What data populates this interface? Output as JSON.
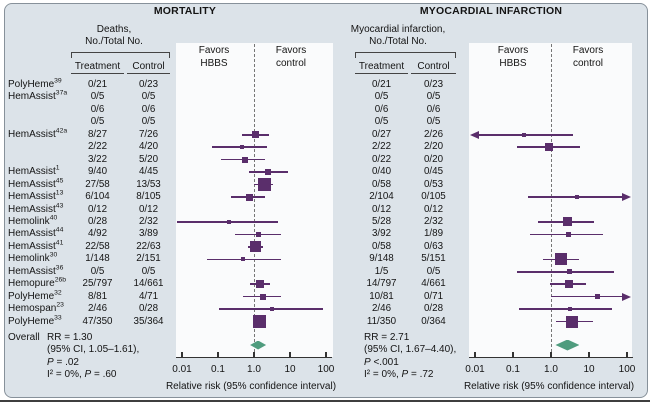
{
  "colors": {
    "marker": "#5a2e6b",
    "diamond": "#4f9c7e",
    "axis": "#333333",
    "background": "#dce3e9",
    "plot_background": "#fafbfc"
  },
  "chart_data": [
    {
      "type": "forest",
      "title": "MORTALITY",
      "outcome_header": [
        "Deaths,",
        "No./Total No."
      ],
      "columns": [
        "Treatment",
        "Control"
      ],
      "favors_hbbs": "Favors HBBS",
      "favors_control": "Favors control",
      "axis_ticks": [
        "0.01",
        "0.1",
        "1.0",
        "10",
        "100"
      ],
      "xlabel": "Relative risk (95% confidence interval)",
      "xlim": [
        0.01,
        100
      ],
      "rows": [
        {
          "label": "PolyHeme",
          "sup": "39",
          "treatment": "0/21",
          "control": "0/23",
          "plot": null
        },
        {
          "label": "HemAssist",
          "sup": "37a",
          "treatment": "0/5",
          "control": "0/5",
          "plot": null
        },
        {
          "label": "",
          "sup": "",
          "treatment": "0/6",
          "control": "0/6",
          "plot": null
        },
        {
          "label": "",
          "sup": "",
          "treatment": "0/5",
          "control": "0/5",
          "plot": null
        },
        {
          "label": "HemAssist",
          "sup": "42a",
          "treatment": "8/27",
          "control": "7/26",
          "plot": {
            "rr": 1.1,
            "lo": 0.45,
            "hi": 2.6,
            "size": 7
          }
        },
        {
          "label": "",
          "sup": "",
          "treatment": "2/22",
          "control": "4/20",
          "plot": {
            "rr": 0.45,
            "lo": 0.07,
            "hi": 2.3,
            "size": 4
          }
        },
        {
          "label": "",
          "sup": "",
          "treatment": "3/22",
          "control": "5/20",
          "plot": {
            "rr": 0.55,
            "lo": 0.12,
            "hi": 2.0,
            "size": 6
          }
        },
        {
          "label": "HemAssist",
          "sup": "1",
          "treatment": "9/40",
          "control": "4/45",
          "plot": {
            "rr": 2.45,
            "lo": 0.73,
            "hi": 8.8,
            "size": 6
          }
        },
        {
          "label": "HemAssist",
          "sup": "45",
          "treatment": "27/58",
          "control": "13/53",
          "plot": {
            "rr": 1.9,
            "lo": 1.0,
            "hi": 3.4,
            "size": 13
          }
        },
        {
          "label": "HemAssist",
          "sup": "13",
          "treatment": "6/104",
          "control": "8/105",
          "plot": {
            "rr": 0.75,
            "lo": 0.23,
            "hi": 2.0,
            "size": 7
          }
        },
        {
          "label": "HemAssist",
          "sup": "43",
          "treatment": "0/12",
          "control": "0/12",
          "plot": null
        },
        {
          "label": "Hemolink",
          "sup": "40",
          "treatment": "0/28",
          "control": "2/32",
          "plot": {
            "rr": 0.2,
            "lo": 0.007,
            "hi": 4.6,
            "size": 4
          }
        },
        {
          "label": "HemAssist",
          "sup": "44",
          "treatment": "4/92",
          "control": "3/89",
          "plot": {
            "rr": 1.3,
            "lo": 0.3,
            "hi": 5.6,
            "size": 5
          }
        },
        {
          "label": "HemAssist",
          "sup": "41",
          "treatment": "22/58",
          "control": "22/63",
          "plot": {
            "rr": 1.09,
            "lo": 0.68,
            "hi": 1.73,
            "size": 11
          }
        },
        {
          "label": "Hemolink",
          "sup": "30",
          "treatment": "1/148",
          "control": "2/151",
          "plot": {
            "rr": 0.5,
            "lo": 0.05,
            "hi": 5.6,
            "size": 4
          }
        },
        {
          "label": "HemAssist",
          "sup": "36",
          "treatment": "0/5",
          "control": "0/5",
          "plot": null
        },
        {
          "label": "Hemopure",
          "sup": "26b",
          "treatment": "25/797",
          "control": "14/661",
          "plot": {
            "rr": 1.48,
            "lo": 0.78,
            "hi": 2.85,
            "size": 8
          }
        },
        {
          "label": "PolyHeme",
          "sup": "32",
          "treatment": "8/81",
          "control": "4/71",
          "plot": {
            "rr": 1.75,
            "lo": 0.5,
            "hi": 5.6,
            "size": 6
          }
        },
        {
          "label": "Hemospan",
          "sup": "23",
          "treatment": "2/46",
          "control": "0/28",
          "plot": {
            "rr": 3.2,
            "lo": 0.11,
            "hi": 80,
            "size": 4
          }
        },
        {
          "label": "PolyHeme",
          "sup": "33",
          "treatment": "47/350",
          "control": "35/364",
          "plot": {
            "rr": 1.4,
            "lo": 0.92,
            "hi": 2.1,
            "size": 13
          }
        }
      ],
      "overall": {
        "label": "Overall",
        "rr": 1.3,
        "lo": 1.05,
        "hi": 1.61,
        "lines": [
          "RR = 1.30",
          "(95% CI, 1.05–1.61),",
          "P = .02",
          "I² = 0%, P = .60"
        ]
      }
    },
    {
      "type": "forest",
      "title": "MYOCARDIAL INFARCTION",
      "outcome_header": [
        "Myocardial infarction,",
        "No./Total No."
      ],
      "columns": [
        "Treatment",
        "Control"
      ],
      "favors_hbbs": "Favors HBBS",
      "favors_control": "Favors control",
      "axis_ticks": [
        "0.01",
        "0.1",
        "1.0",
        "10",
        "100"
      ],
      "xlabel": "Relative risk (95% confidence interval)",
      "xlim": [
        0.01,
        100
      ],
      "rows": [
        {
          "treatment": "0/21",
          "control": "0/23",
          "plot": null
        },
        {
          "treatment": "0/5",
          "control": "0/5",
          "plot": null
        },
        {
          "treatment": "0/6",
          "control": "0/6",
          "plot": null
        },
        {
          "treatment": "0/5",
          "control": "0/5",
          "plot": null
        },
        {
          "treatment": "0/27",
          "control": "2/26",
          "plot": {
            "rr": 0.2,
            "lo": 0.01,
            "hi": 3.8,
            "size": 4,
            "arrow": "left"
          }
        },
        {
          "treatment": "2/22",
          "control": "2/20",
          "plot": {
            "rr": 0.91,
            "lo": 0.13,
            "hi": 5.8,
            "size": 8
          }
        },
        {
          "treatment": "0/22",
          "control": "0/20",
          "plot": null
        },
        {
          "treatment": "0/40",
          "control": "0/45",
          "plot": null
        },
        {
          "treatment": "0/58",
          "control": "0/53",
          "plot": null
        },
        {
          "treatment": "2/104",
          "control": "0/105",
          "plot": {
            "rr": 4.8,
            "lo": 0.25,
            "hi": 100,
            "size": 4,
            "arrow": "right"
          }
        },
        {
          "treatment": "0/12",
          "control": "0/12",
          "plot": null
        },
        {
          "treatment": "5/28",
          "control": "2/32",
          "plot": {
            "rr": 2.8,
            "lo": 0.45,
            "hi": 13.5,
            "size": 9
          }
        },
        {
          "treatment": "3/92",
          "control": "1/89",
          "plot": {
            "rr": 2.9,
            "lo": 0.28,
            "hi": 24,
            "size": 5
          }
        },
        {
          "treatment": "0/58",
          "control": "0/63",
          "plot": null
        },
        {
          "treatment": "9/148",
          "control": "5/151",
          "plot": {
            "rr": 1.8,
            "lo": 0.63,
            "hi": 5.4,
            "size": 12
          }
        },
        {
          "treatment": "1/5",
          "control": "0/5",
          "plot": {
            "rr": 3.0,
            "lo": 0.13,
            "hi": 45,
            "size": 5
          }
        },
        {
          "treatment": "14/797",
          "control": "4/661",
          "plot": {
            "rr": 2.9,
            "lo": 0.97,
            "hi": 8.6,
            "size": 8
          }
        },
        {
          "treatment": "10/81",
          "control": "0/71",
          "plot": {
            "rr": 17,
            "lo": 1.0,
            "hi": 100,
            "size": 5,
            "arrow": "right"
          }
        },
        {
          "treatment": "2/46",
          "control": "0/28",
          "plot": {
            "rr": 3.2,
            "lo": 0.14,
            "hi": 40,
            "size": 4
          }
        },
        {
          "treatment": "11/350",
          "control": "0/364",
          "plot": {
            "rr": 3.5,
            "lo": 1.35,
            "hi": 13,
            "size": 12
          }
        }
      ],
      "overall": {
        "rr": 2.71,
        "lo": 1.67,
        "hi": 4.4,
        "lines": [
          "RR = 2.71",
          "(95% CI, 1.67–4.40),",
          "P <.001",
          "I² = 0%, P = .72"
        ]
      }
    }
  ]
}
